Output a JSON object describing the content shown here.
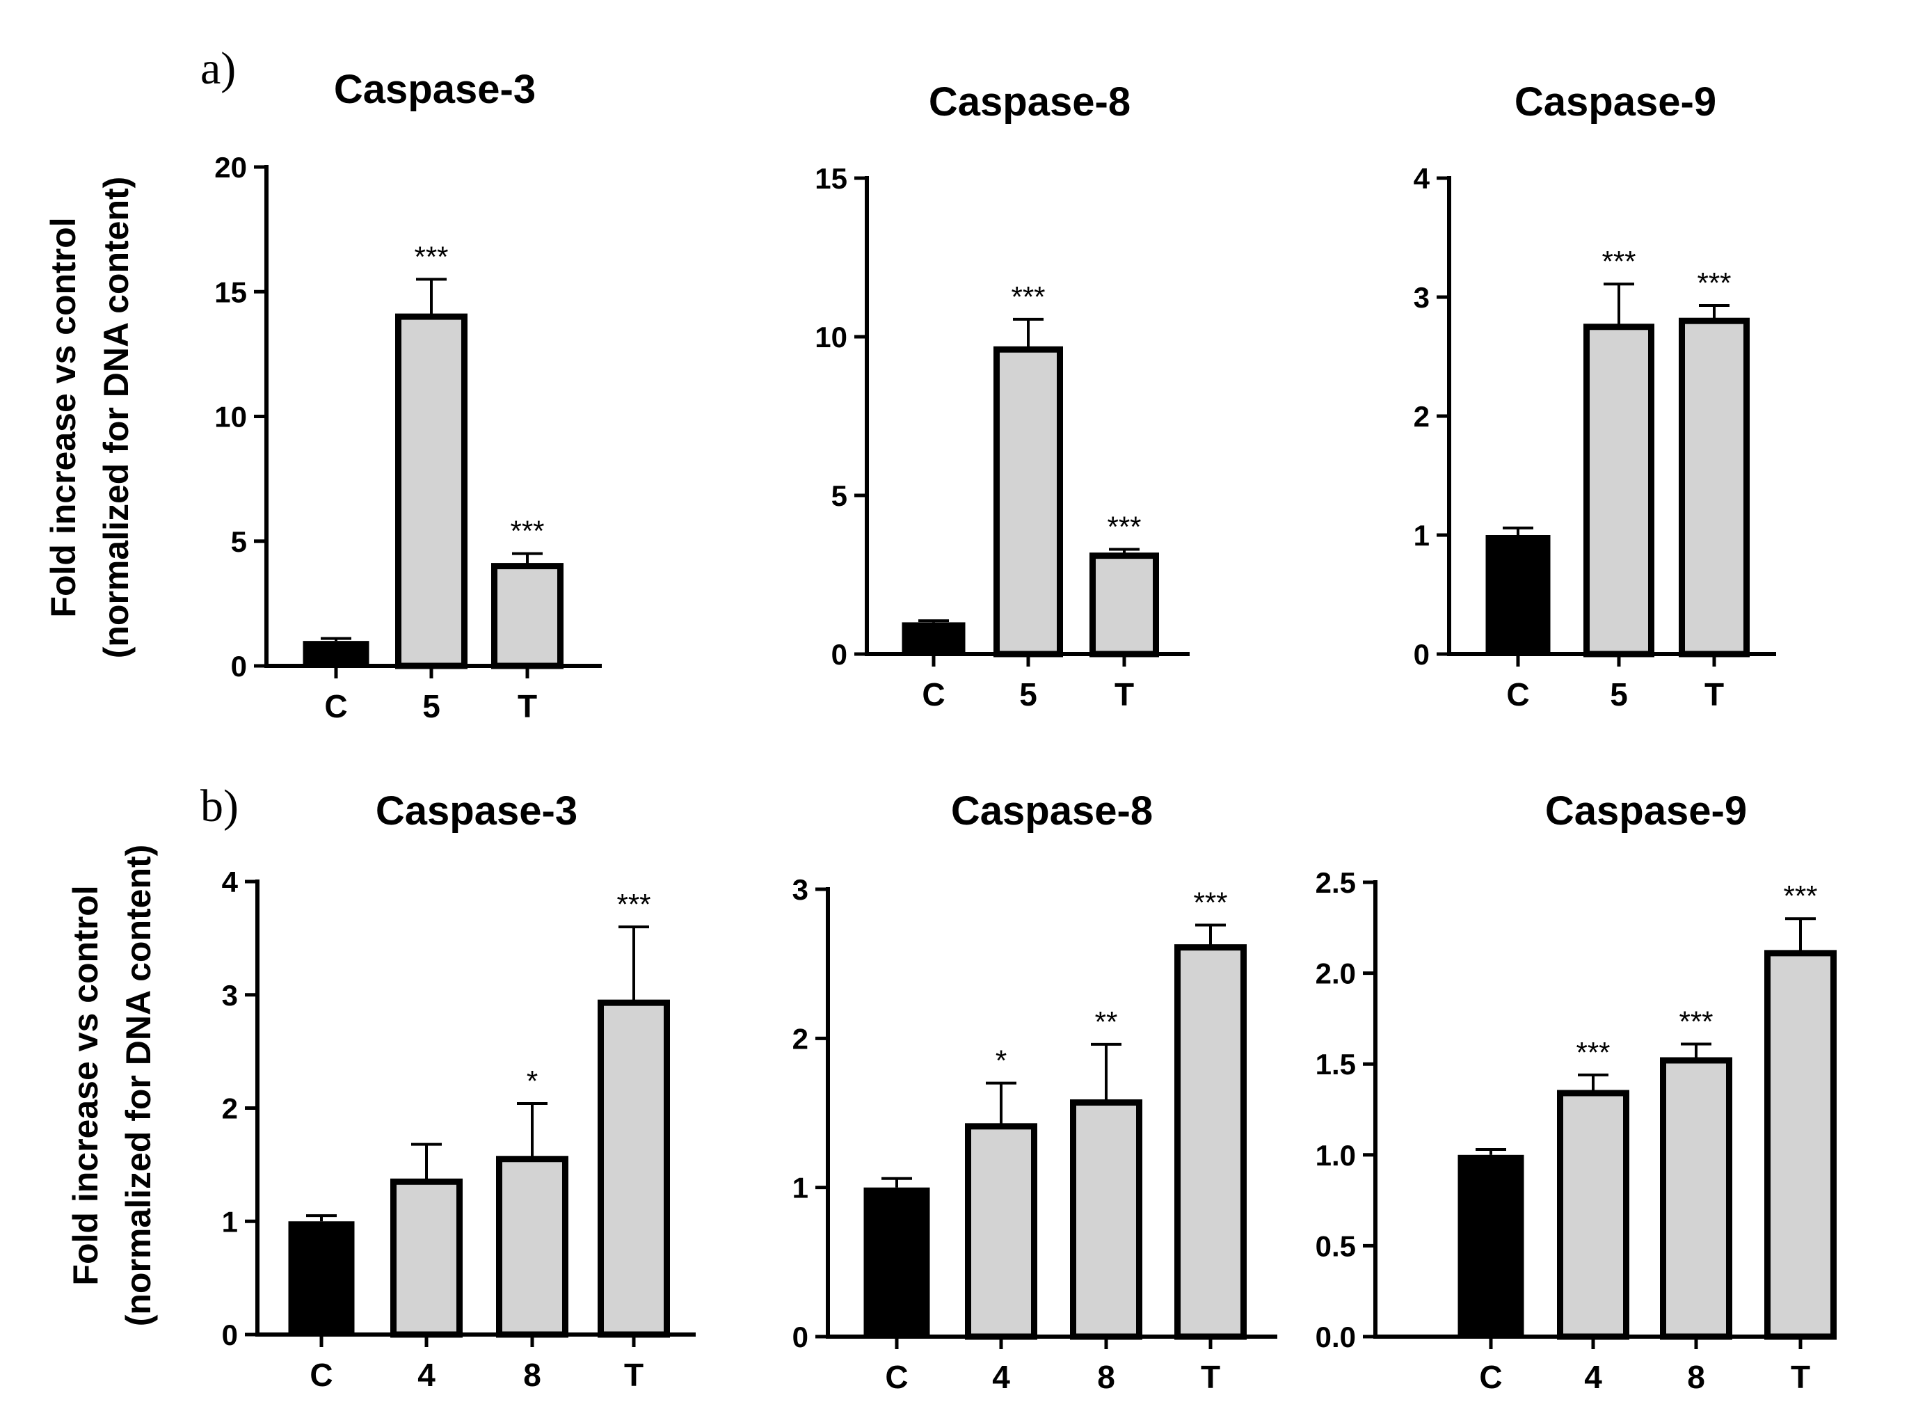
{
  "panel_labels": [
    "a)",
    "b)"
  ],
  "ylabel": {
    "row_a": [
      "Fold increase vs control",
      "(normalized for DNA content)"
    ],
    "row_b": [
      "Fold increase vs control",
      "(normalized for DNA content)"
    ]
  },
  "colors": {
    "control": "#000000",
    "treated": "#d3d3d3",
    "edge": "#000000"
  },
  "chart_data": [
    {
      "type": "bar",
      "title": "Caspase-3",
      "panel": "a",
      "categories": [
        "C",
        "5",
        "T"
      ],
      "values": [
        1.0,
        14.0,
        4.0
      ],
      "errors": [
        0.1,
        1.5,
        0.5
      ],
      "significance": [
        "",
        "***",
        "***"
      ],
      "ylim": [
        0,
        20
      ],
      "yticks": [
        0,
        5,
        10,
        15,
        20
      ],
      "ytick_labels": [
        "0",
        "5",
        "10",
        "15",
        "20"
      ]
    },
    {
      "type": "bar",
      "title": "Caspase-8",
      "panel": "a",
      "categories": [
        "C",
        "5",
        "T"
      ],
      "values": [
        1.0,
        9.6,
        3.1
      ],
      "errors": [
        0.05,
        0.95,
        0.2
      ],
      "significance": [
        "",
        "***",
        "***"
      ],
      "ylim": [
        0,
        15
      ],
      "yticks": [
        0,
        5,
        10,
        15
      ],
      "ytick_labels": [
        "0",
        "5",
        "10",
        "15"
      ]
    },
    {
      "type": "bar",
      "title": "Caspase-9",
      "panel": "a",
      "categories": [
        "C",
        "5",
        "T"
      ],
      "values": [
        1.0,
        2.75,
        2.8
      ],
      "errors": [
        0.06,
        0.36,
        0.13
      ],
      "significance": [
        "",
        "***",
        "***"
      ],
      "ylim": [
        0,
        4
      ],
      "yticks": [
        0,
        1,
        2,
        3,
        4
      ],
      "ytick_labels": [
        "0",
        "1",
        "2",
        "3",
        "4"
      ]
    },
    {
      "type": "bar",
      "title": "Caspase-3",
      "panel": "b",
      "categories": [
        "C",
        "4",
        "8",
        "T"
      ],
      "values": [
        1.0,
        1.35,
        1.55,
        2.93
      ],
      "errors": [
        0.05,
        0.33,
        0.49,
        0.67
      ],
      "significance": [
        "",
        "",
        "*",
        "***"
      ],
      "ylim": [
        0,
        4
      ],
      "yticks": [
        0,
        1,
        2,
        3,
        4
      ],
      "ytick_labels": [
        "0",
        "1",
        "2",
        "3",
        "4"
      ]
    },
    {
      "type": "bar",
      "title": "Caspase-8",
      "panel": "b",
      "categories": [
        "C",
        "4",
        "8",
        "T"
      ],
      "values": [
        1.0,
        1.41,
        1.57,
        2.61
      ],
      "errors": [
        0.06,
        0.29,
        0.39,
        0.15
      ],
      "significance": [
        "",
        "*",
        "**",
        "***"
      ],
      "ylim": [
        0,
        3
      ],
      "yticks": [
        0,
        1,
        2,
        3
      ],
      "ytick_labels": [
        "0",
        "1",
        "2",
        "3"
      ]
    },
    {
      "type": "bar",
      "title": "Caspase-9",
      "panel": "b",
      "categories": [
        "C",
        "4",
        "8",
        "T"
      ],
      "values": [
        1.0,
        1.34,
        1.52,
        2.11
      ],
      "errors": [
        0.03,
        0.1,
        0.09,
        0.19
      ],
      "significance": [
        "",
        "***",
        "***",
        "***"
      ],
      "ylim": [
        0,
        2.5
      ],
      "yticks": [
        0,
        0.5,
        1.0,
        1.5,
        2.0,
        2.5
      ],
      "ytick_labels": [
        "0.0",
        "0.5",
        "1.0",
        "1.5",
        "2.0",
        "2.5"
      ]
    }
  ]
}
